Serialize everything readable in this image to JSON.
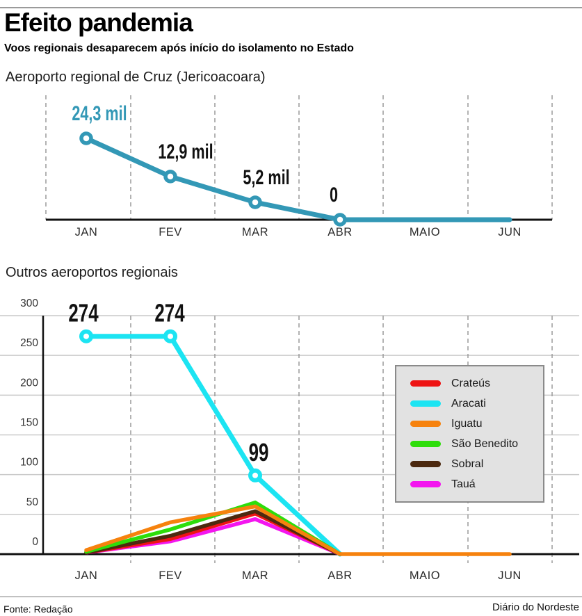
{
  "header": {
    "title": "Efeito pandemia",
    "subtitle": "Voos regionais desaparecem após início do isolamento no Estado"
  },
  "footer": {
    "source": "Fonte: Redação",
    "credit": "Diário do Nordeste"
  },
  "colors": {
    "teal": "#3398b6",
    "black_label": "#111111",
    "axis": "#111111",
    "gridline": "#c9c9c9",
    "dashed_gridline": "#9a9a9a"
  },
  "chart_data": [
    {
      "type": "line",
      "title": "Aeroporto regional de Cruz (Jericoacoara)",
      "categories": [
        "JAN",
        "FEV",
        "MAR",
        "ABR",
        "MAIO",
        "JUN"
      ],
      "xlabel": "",
      "ylabel": "",
      "ylim": [
        0,
        24300
      ],
      "grid": "dashed-vertical",
      "legend_position": "none",
      "series": [
        {
          "name": "Cruz (Jericoacoara)",
          "color": "#3398b6",
          "values": [
            24300,
            12900,
            5200,
            0,
            0,
            0
          ],
          "marker_count": 4,
          "labels": [
            {
              "text": "24,3 mil",
              "dx": 19,
              "color": "#3398b6"
            },
            {
              "text": "12,9 mil",
              "dx": 22,
              "color": "#111111"
            },
            {
              "text": "5,2 mil",
              "dx": 16,
              "color": "#111111"
            },
            {
              "text": "0",
              "dx": -9,
              "color": "#111111"
            }
          ]
        }
      ]
    },
    {
      "type": "line",
      "title": "Outros aeroportos regionais",
      "categories": [
        "JAN",
        "FEV",
        "MAR",
        "ABR",
        "MAIO",
        "JUN"
      ],
      "xlabel": "",
      "ylabel": "",
      "ylim": [
        0,
        300
      ],
      "yticks": [
        300,
        250,
        200,
        150,
        100,
        50,
        0
      ],
      "grid": "horizontal+dashed-vertical",
      "legend_position": "right-middle",
      "draw_order": [
        1,
        5,
        0,
        4,
        3,
        2
      ],
      "series": [
        {
          "name": "Crateús",
          "color": "#ee1414",
          "values": [
            2,
            19,
            51,
            0
          ]
        },
        {
          "name": "Aracati",
          "color": "#1ce4f2",
          "values": [
            274,
            274,
            99,
            0
          ],
          "marker_count": 3,
          "labels": [
            {
              "text": "274",
              "dx": -4,
              "color": "#111111"
            },
            {
              "text": "274",
              "dx": -1,
              "color": "#111111"
            },
            {
              "text": "99",
              "dx": 5,
              "color": "#111111"
            }
          ]
        },
        {
          "name": "Iguatu",
          "color": "#f6820e",
          "values": [
            5,
            40,
            60,
            0,
            0,
            0
          ]
        },
        {
          "name": "São Benedito",
          "color": "#2edd0b",
          "values": [
            3,
            31,
            65,
            0
          ]
        },
        {
          "name": "Sobral",
          "color": "#4c290f",
          "values": [
            2,
            23,
            54,
            0
          ]
        },
        {
          "name": "Tauá",
          "color": "#f316ef",
          "values": [
            2,
            16,
            44,
            0
          ]
        }
      ]
    }
  ]
}
